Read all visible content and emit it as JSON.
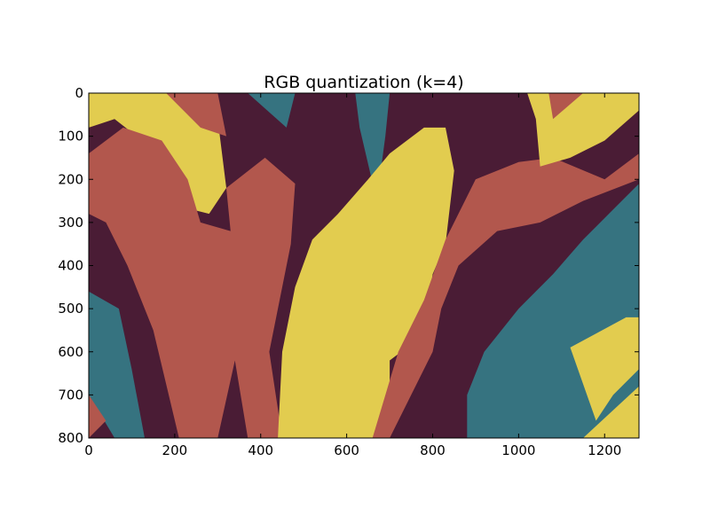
{
  "chart_data": {
    "type": "heatmap",
    "title": "RGB quantization (k=4)",
    "xlabel": "",
    "ylabel": "",
    "xlim": [
      0,
      1280
    ],
    "ylim": [
      800,
      0
    ],
    "x_ticks": [
      0,
      200,
      400,
      600,
      800,
      1000,
      1200
    ],
    "y_ticks": [
      0,
      100,
      200,
      300,
      400,
      500,
      600,
      700,
      800
    ],
    "grid": false,
    "legend": "none",
    "palette": [
      "#4a1c35",
      "#b2574d",
      "#e2cc4f",
      "#367380"
    ],
    "image_description_regions": [
      {
        "color_index": 2,
        "polygon": [
          [
            0,
            0
          ],
          [
            230,
            0
          ],
          [
            250,
            60
          ],
          [
            300,
            60
          ],
          [
            320,
            220
          ],
          [
            280,
            280
          ],
          [
            200,
            260
          ],
          [
            150,
            130
          ],
          [
            60,
            60
          ],
          [
            0,
            80
          ]
        ]
      },
      {
        "color_index": 1,
        "polygon": [
          [
            80,
            80
          ],
          [
            170,
            110
          ],
          [
            230,
            200
          ],
          [
            260,
            300
          ],
          [
            330,
            320
          ],
          [
            320,
            220
          ],
          [
            410,
            150
          ],
          [
            480,
            210
          ],
          [
            470,
            350
          ],
          [
            420,
            600
          ],
          [
            450,
            800
          ],
          [
            370,
            800
          ],
          [
            340,
            620
          ],
          [
            300,
            800
          ],
          [
            210,
            800
          ],
          [
            150,
            550
          ],
          [
            90,
            400
          ],
          [
            40,
            300
          ],
          [
            0,
            280
          ],
          [
            0,
            140
          ]
        ]
      },
      {
        "color_index": 1,
        "polygon": [
          [
            180,
            0
          ],
          [
            300,
            0
          ],
          [
            320,
            100
          ],
          [
            260,
            80
          ]
        ]
      },
      {
        "color_index": 3,
        "polygon": [
          [
            370,
            0
          ],
          [
            480,
            0
          ],
          [
            460,
            80
          ]
        ]
      },
      {
        "color_index": 3,
        "polygon": [
          [
            620,
            0
          ],
          [
            700,
            0
          ],
          [
            690,
            100
          ],
          [
            670,
            250
          ],
          [
            630,
            80
          ]
        ]
      },
      {
        "color_index": 2,
        "polygon": [
          [
            780,
            80
          ],
          [
            830,
            80
          ],
          [
            850,
            180
          ],
          [
            830,
            350
          ],
          [
            800,
            420
          ],
          [
            780,
            560
          ],
          [
            700,
            620
          ],
          [
            700,
            800
          ],
          [
            440,
            800
          ],
          [
            450,
            600
          ],
          [
            480,
            450
          ],
          [
            520,
            340
          ],
          [
            580,
            280
          ],
          [
            650,
            200
          ],
          [
            700,
            140
          ]
        ]
      },
      {
        "color_index": 1,
        "polygon": [
          [
            830,
            340
          ],
          [
            900,
            200
          ],
          [
            1000,
            160
          ],
          [
            1080,
            150
          ],
          [
            1200,
            200
          ],
          [
            1280,
            140
          ],
          [
            1280,
            200
          ],
          [
            1150,
            250
          ],
          [
            1050,
            300
          ],
          [
            950,
            320
          ],
          [
            860,
            400
          ],
          [
            820,
            500
          ],
          [
            800,
            600
          ],
          [
            700,
            800
          ],
          [
            660,
            800
          ],
          [
            720,
            600
          ],
          [
            780,
            480
          ]
        ]
      },
      {
        "color_index": 2,
        "polygon": [
          [
            1020,
            0
          ],
          [
            1280,
            0
          ],
          [
            1280,
            40
          ],
          [
            1200,
            110
          ],
          [
            1120,
            150
          ],
          [
            1050,
            170
          ],
          [
            1040,
            60
          ]
        ]
      },
      {
        "color_index": 1,
        "polygon": [
          [
            1070,
            0
          ],
          [
            1150,
            0
          ],
          [
            1080,
            60
          ]
        ]
      },
      {
        "color_index": 3,
        "polygon": [
          [
            1280,
            210
          ],
          [
            1280,
            800
          ],
          [
            880,
            800
          ],
          [
            880,
            700
          ],
          [
            920,
            600
          ],
          [
            1000,
            500
          ],
          [
            1080,
            420
          ],
          [
            1150,
            340
          ],
          [
            1220,
            270
          ]
        ]
      },
      {
        "color_index": 2,
        "polygon": [
          [
            1120,
            590
          ],
          [
            1250,
            520
          ],
          [
            1280,
            520
          ],
          [
            1280,
            640
          ],
          [
            1220,
            700
          ],
          [
            1180,
            760
          ]
        ]
      },
      {
        "color_index": 2,
        "polygon": [
          [
            1150,
            800
          ],
          [
            1280,
            680
          ],
          [
            1280,
            800
          ]
        ]
      },
      {
        "color_index": 3,
        "polygon": [
          [
            0,
            460
          ],
          [
            70,
            500
          ],
          [
            100,
            640
          ],
          [
            130,
            800
          ],
          [
            60,
            800
          ],
          [
            0,
            700
          ]
        ]
      },
      {
        "color_index": 1,
        "polygon": [
          [
            0,
            800
          ],
          [
            0,
            700
          ],
          [
            40,
            760
          ]
        ]
      }
    ],
    "x_tick_labels": [
      "0",
      "200",
      "400",
      "600",
      "800",
      "1000",
      "1200"
    ],
    "y_tick_labels": [
      "0",
      "100",
      "200",
      "300",
      "400",
      "500",
      "600",
      "700",
      "800"
    ]
  }
}
